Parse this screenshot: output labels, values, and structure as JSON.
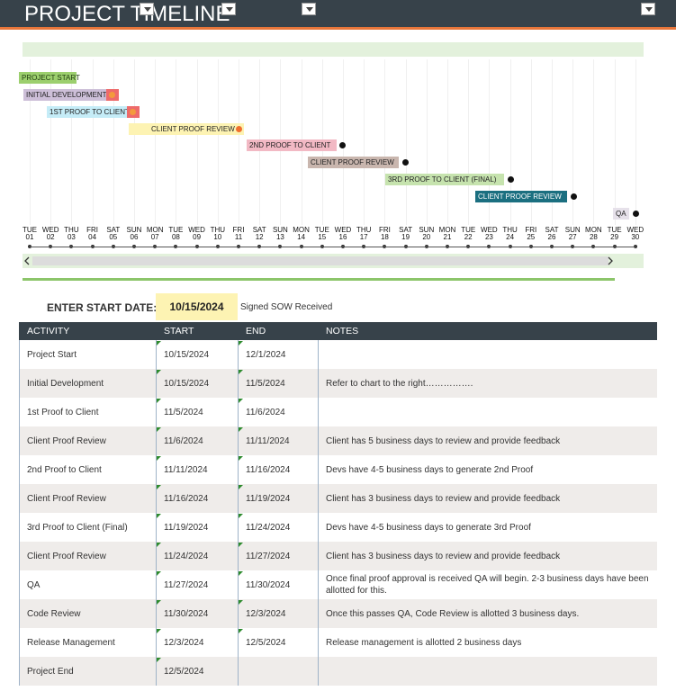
{
  "header": {
    "title": "PROJECT TIMELINE"
  },
  "timeline": {
    "milestones": [
      {
        "label": "PROJECT START"
      },
      {
        "label": "INITIAL DEVELOPMENT"
      },
      {
        "label": "1ST PROOF TO CLIENT"
      },
      {
        "label": "CLIENT PROOF REVIEW"
      },
      {
        "label": "2ND PROOF TO CLIENT"
      },
      {
        "label": "CLIENT PROOF REVIEW"
      },
      {
        "label": "3RD PROOF TO CLIENT (FINAL)"
      },
      {
        "label": "CLIENT PROOF REVIEW"
      },
      {
        "label": "QA"
      }
    ],
    "days": [
      {
        "weekday": "TUE",
        "date": "01"
      },
      {
        "weekday": "WED",
        "date": "02"
      },
      {
        "weekday": "THU",
        "date": "03"
      },
      {
        "weekday": "FRI",
        "date": "04"
      },
      {
        "weekday": "SAT",
        "date": "05"
      },
      {
        "weekday": "SUN",
        "date": "06"
      },
      {
        "weekday": "MON",
        "date": "07"
      },
      {
        "weekday": "TUE",
        "date": "08"
      },
      {
        "weekday": "WED",
        "date": "09"
      },
      {
        "weekday": "THU",
        "date": "10"
      },
      {
        "weekday": "FRI",
        "date": "11"
      },
      {
        "weekday": "SAT",
        "date": "12"
      },
      {
        "weekday": "SUN",
        "date": "13"
      },
      {
        "weekday": "MON",
        "date": "14"
      },
      {
        "weekday": "TUE",
        "date": "15"
      },
      {
        "weekday": "WED",
        "date": "16"
      },
      {
        "weekday": "THU",
        "date": "17"
      },
      {
        "weekday": "FRI",
        "date": "18"
      },
      {
        "weekday": "SAT",
        "date": "19"
      },
      {
        "weekday": "SUN",
        "date": "20"
      },
      {
        "weekday": "MON",
        "date": "21"
      },
      {
        "weekday": "TUE",
        "date": "22"
      },
      {
        "weekday": "WED",
        "date": "23"
      },
      {
        "weekday": "THU",
        "date": "24"
      },
      {
        "weekday": "FRI",
        "date": "25"
      },
      {
        "weekday": "SAT",
        "date": "26"
      },
      {
        "weekday": "SUN",
        "date": "27"
      },
      {
        "weekday": "MON",
        "date": "28"
      },
      {
        "weekday": "TUE",
        "date": "29"
      },
      {
        "weekday": "WED",
        "date": "30"
      }
    ]
  },
  "start_date": {
    "label": "ENTER START DATE:",
    "value": "10/15/2024",
    "note": "Signed SOW Received"
  },
  "table": {
    "columns": [
      "ACTIVITY",
      "START",
      "END",
      "NOTES"
    ],
    "rows": [
      {
        "activity": "Project Start",
        "start": "10/15/2024",
        "end": "12/1/2024"
      },
      {
        "activity": "Initial Development",
        "start": "10/15/2024",
        "end": "11/5/2024",
        "notes": "Refer to chart to the right……………."
      },
      {
        "activity": "1st Proof to Client",
        "start": "11/5/2024",
        "end": "11/6/2024"
      },
      {
        "activity": "Client Proof Review",
        "start": "11/6/2024",
        "end": "11/11/2024",
        "notes": "Client has 5 business days to review and provide feedback"
      },
      {
        "activity": "2nd Proof to Client",
        "start": "11/11/2024",
        "end": "11/16/2024",
        "notes": "Devs have 4-5 business days to generate 2nd Proof"
      },
      {
        "activity": "Client Proof Review",
        "start": "11/16/2024",
        "end": "11/19/2024",
        "notes": "Client has 3 business days to review and provide feedback"
      },
      {
        "activity": "3rd Proof to Client (Final)",
        "start": "11/19/2024",
        "end": "11/24/2024",
        "notes": "Devs have 4-5 business days to generate 3rd Proof"
      },
      {
        "activity": "Client Proof Review",
        "start": "11/24/2024",
        "end": "11/27/2024",
        "notes": "Client has 3 business days to review and provide feedback"
      },
      {
        "activity": "QA",
        "start": "11/27/2024",
        "end": "11/30/2024",
        "notes": "Once final proof approval is received QA will begin.  2-3 business days have been allotted for this."
      },
      {
        "activity": "Code Review",
        "start": "11/30/2024",
        "end": "12/3/2024",
        "notes": "Once this passes QA, Code Review is allotted 3 business days."
      },
      {
        "activity": "Release Management",
        "start": "12/3/2024",
        "end": "12/5/2024",
        "notes": "Release management is allotted 2 business days"
      },
      {
        "activity": "Project End",
        "start": "12/5/2024"
      }
    ]
  }
}
